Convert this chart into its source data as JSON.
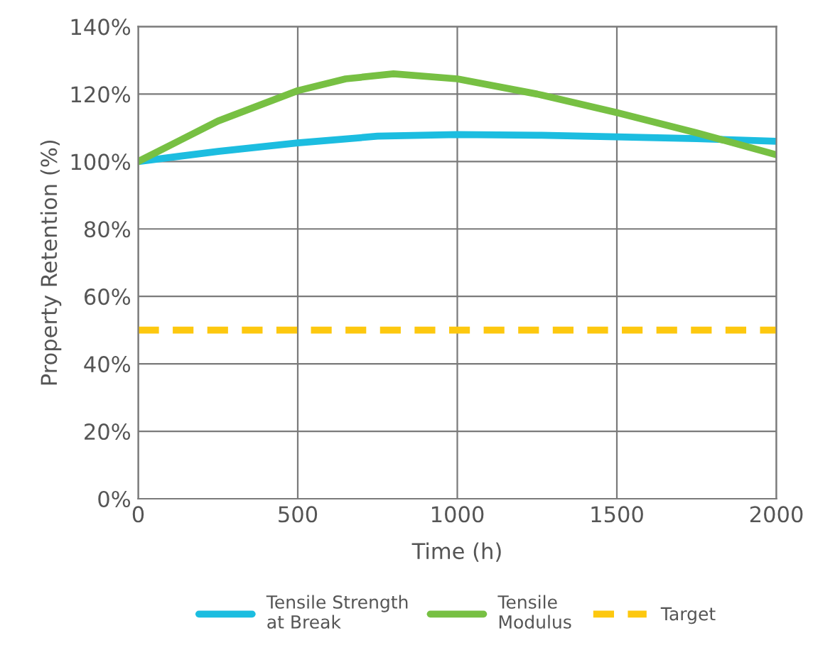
{
  "chart_data": {
    "type": "line",
    "xlabel": "Time (h)",
    "ylabel": "Property Retention (%)",
    "xlim": [
      0,
      2000
    ],
    "xticks": [
      0,
      500,
      1000,
      1500,
      2000
    ],
    "ylim": [
      0,
      140
    ],
    "yticks": [
      {
        "value": 0,
        "label": "0%"
      },
      {
        "value": 20,
        "label": "20%"
      },
      {
        "value": 40,
        "label": "40%"
      },
      {
        "value": 60,
        "label": "60%"
      },
      {
        "value": 80,
        "label": "80%"
      },
      {
        "value": 100,
        "label": "100%"
      },
      {
        "value": 120,
        "label": "120%"
      },
      {
        "value": 140,
        "label": "140%"
      }
    ],
    "grid": true,
    "legend": "bottom",
    "marker": "none",
    "series": [
      {
        "name": "Tensile Strength\nat Break",
        "color": "#1cbde0",
        "line_style": "solid",
        "x": [
          0,
          250,
          500,
          750,
          1000,
          1250,
          1500,
          1750,
          2000
        ],
        "values": [
          100,
          103,
          105.5,
          107.5,
          108,
          107.8,
          107.3,
          106.8,
          106
        ]
      },
      {
        "name": "Tensile\nModulus",
        "color": "#77c043",
        "line_style": "solid",
        "x": [
          0,
          250,
          500,
          650,
          800,
          1000,
          1250,
          1500,
          1750,
          2000
        ],
        "values": [
          100,
          112,
          121,
          124.5,
          126,
          124.5,
          120,
          114.5,
          108.5,
          102
        ]
      },
      {
        "name": "Target",
        "color": "#fdc80f",
        "line_style": "dashed",
        "x": [
          0,
          2000
        ],
        "values": [
          50,
          50
        ]
      }
    ]
  }
}
